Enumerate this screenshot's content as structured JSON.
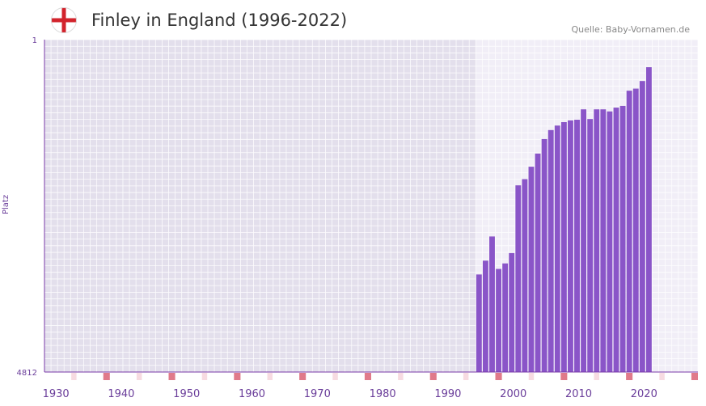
{
  "chart_data": {
    "type": "bar",
    "title": "Finley in England (1996-2022)",
    "source": "Quelle: Baby-Vornamen.de",
    "ylabel": "Platz",
    "y_top_label": "1",
    "y_bottom_label": "4812",
    "ylim": [
      4812,
      1
    ],
    "x_range": [
      1929,
      2029
    ],
    "x_ticks": [
      "1930",
      "1940",
      "1950",
      "1960",
      "1970",
      "1980",
      "1990",
      "2000",
      "2010",
      "2020"
    ],
    "highlight_start": 1995,
    "series": [
      {
        "name": "Finley",
        "x": [
          1995,
          1996,
          1997,
          1998,
          1999,
          2000,
          2001,
          2002,
          2003,
          2004,
          2005,
          2006,
          2007,
          2008,
          2009,
          2010,
          2011,
          2012,
          2013,
          2014,
          2015,
          2016,
          2017,
          2018,
          2019,
          2020,
          2021
        ],
        "values": [
          3400,
          3200,
          2850,
          3320,
          3240,
          3090,
          2110,
          2020,
          1840,
          1650,
          1440,
          1310,
          1245,
          1195,
          1170,
          1160,
          1010,
          1150,
          1010,
          1010,
          1040,
          985,
          960,
          740,
          710,
          600,
          400
        ]
      }
    ],
    "colors": {
      "bar": "#8a55c8",
      "grid_bg": "#e3dfec",
      "highlight_bg": "#f1eef7",
      "axis": "#7a3aa8",
      "tick_text": "#6a3d9a",
      "marker_major": "#e07a8a",
      "marker_minor": "#f7dbe1"
    }
  },
  "flag": {
    "name": "england-flag",
    "cross_color": "#d2232c",
    "field_color": "#ffffff"
  }
}
